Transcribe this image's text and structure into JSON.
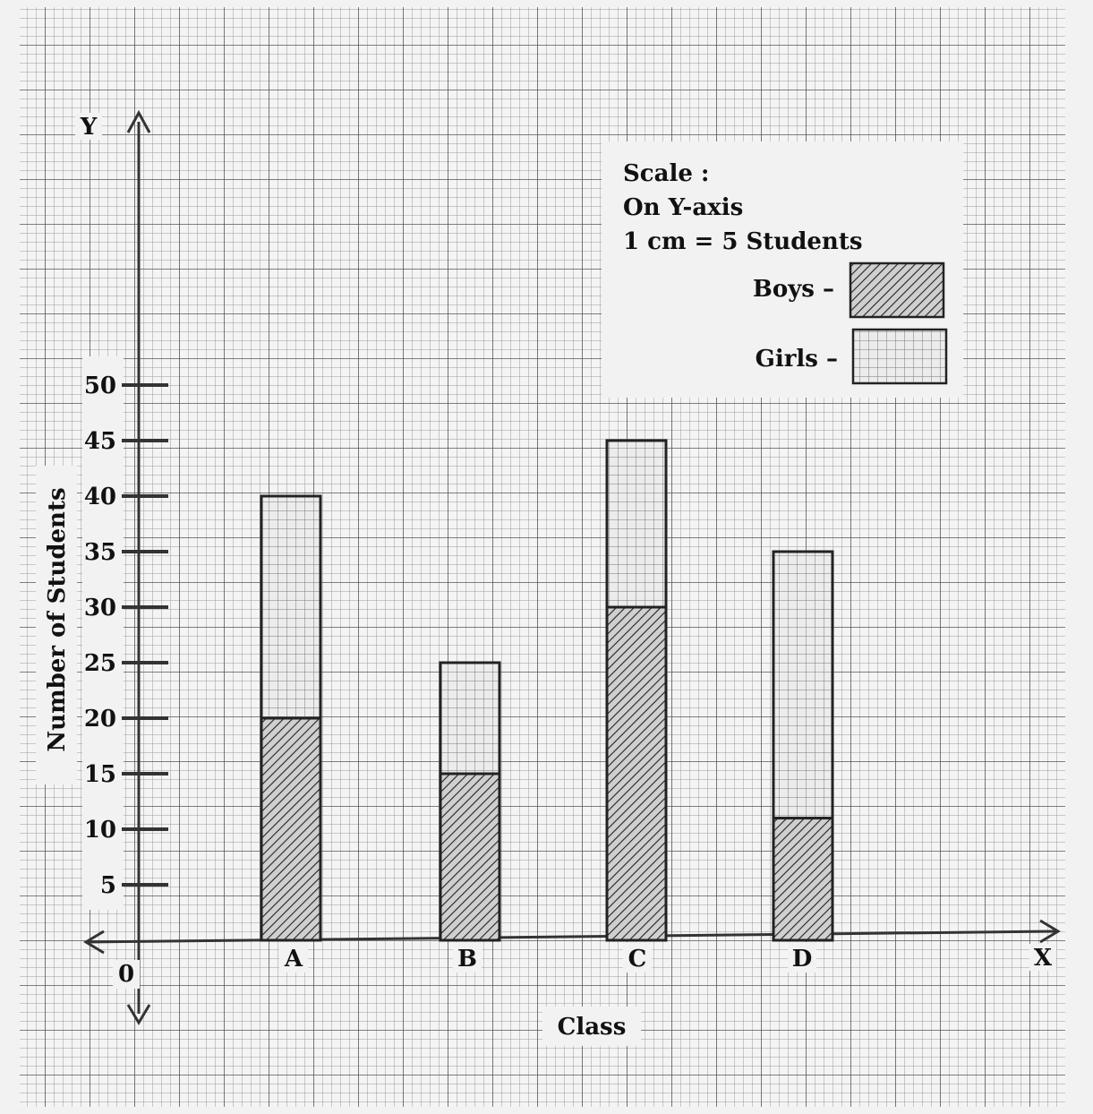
{
  "chart_data": {
    "type": "bar",
    "stacked": true,
    "categories": [
      "A",
      "B",
      "C",
      "D"
    ],
    "series": [
      {
        "name": "Boys",
        "values": [
          20,
          15,
          30,
          11
        ],
        "pattern": "diagonal-hatch"
      },
      {
        "name": "Girls",
        "values": [
          20,
          10,
          15,
          24
        ],
        "pattern": "grid"
      }
    ],
    "totals": [
      40,
      25,
      45,
      35
    ],
    "xlabel": "Class",
    "ylabel": "Number of Students",
    "ylim": [
      0,
      50
    ],
    "yticks": [
      5,
      10,
      15,
      20,
      25,
      30,
      35,
      40,
      45,
      50
    ],
    "origin_label": "0",
    "x_axis_letter": "X",
    "y_axis_letter": "Y",
    "grid": true,
    "legend_position": "top-right"
  },
  "legend": {
    "scale_title": "Scale :",
    "scale_axis": "On Y-axis",
    "scale_value": "1 cm = 5 Students",
    "boys_label": "Boys –",
    "girls_label": "Girls –"
  },
  "colors": {
    "background": "#f2f2f2",
    "grid_minor": "#9a9a9a",
    "grid_major": "#555555",
    "axis": "#333333",
    "bar_outline": "#222222",
    "hatch": "#222222"
  }
}
